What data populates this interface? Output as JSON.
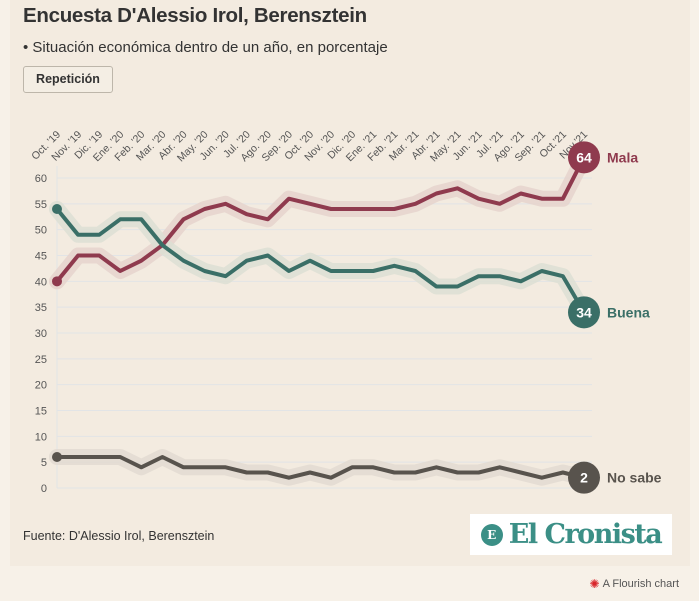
{
  "header": {
    "title": "Encuesta D'Alessio Irol, Berensztein",
    "subtitle": "• Situación económica dentro de un año, en porcentaje",
    "replay_label": "Repetición"
  },
  "footer": {
    "source": "Fuente: D'Alessio Irol, Berensztein",
    "logo_text": "El Cronista",
    "logo_mark": "E",
    "flourish_label": "A Flourish chart",
    "flourish_icon": "✺"
  },
  "chart_data": {
    "type": "line",
    "title": "Encuesta D'Alessio Irol, Berensztein",
    "subtitle": "Situación económica dentro de un año, en porcentaje",
    "xlabel": "",
    "ylabel": "",
    "ylim": [
      0,
      60
    ],
    "yticks": [
      0,
      5,
      10,
      15,
      20,
      25,
      30,
      35,
      40,
      45,
      50,
      55,
      60
    ],
    "grid": true,
    "legend": "end-of-line labels (right)",
    "x": [
      "Oct. '19",
      "Nov. '19",
      "Dic. '19",
      "Ene. '20",
      "Feb. '20",
      "Mar. '20",
      "Abr. '20",
      "May. '20",
      "Jun. '20",
      "Jul. '20",
      "Ago. '20",
      "Sep. '20",
      "Oct. '20",
      "Nov. '20",
      "Dic. '20",
      "Ene. '21",
      "Feb. '21",
      "Mar. '21",
      "Abr. '21",
      "May. '21",
      "Jun. '21",
      "Jul. '21",
      "Ago. '21",
      "Sep. '21",
      "Oct.'21",
      "Nov.'21"
    ],
    "series": [
      {
        "name": "Mala",
        "color": "#8f3a4e",
        "halo": "#e5d3cd",
        "end_label": "64",
        "values": [
          40,
          45,
          45,
          42,
          44,
          47,
          52,
          54,
          55,
          53,
          52,
          56,
          55,
          54,
          54,
          54,
          54,
          55,
          57,
          58,
          56,
          55,
          57,
          56,
          56,
          64
        ]
      },
      {
        "name": "Buena",
        "color": "#3a6f67",
        "halo": "#dcdfd4",
        "end_label": "34",
        "values": [
          54,
          49,
          49,
          52,
          52,
          47,
          44,
          42,
          41,
          44,
          45,
          42,
          44,
          42,
          42,
          42,
          43,
          42,
          39,
          39,
          41,
          41,
          40,
          42,
          41,
          34
        ]
      },
      {
        "name": "No sabe",
        "color": "#58534d",
        "halo": "#e2dbd1",
        "end_label": "2",
        "values": [
          6,
          6,
          6,
          6,
          4,
          6,
          4,
          4,
          4,
          3,
          3,
          2,
          3,
          2,
          4,
          4,
          3,
          3,
          4,
          3,
          3,
          4,
          3,
          2,
          3,
          2
        ]
      }
    ]
  }
}
